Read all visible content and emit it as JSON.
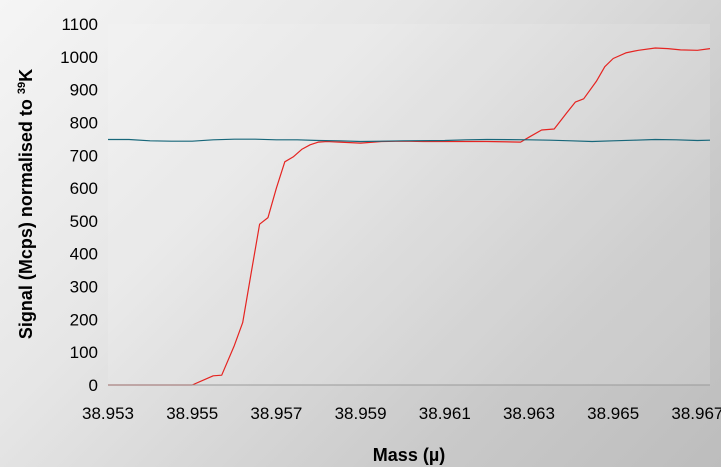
{
  "chart_data": {
    "type": "line",
    "xlabel": "Mass (µ)",
    "ylabel": {
      "prefix": "Signal (Mcps) normalised to ",
      "superscript": "39",
      "suffix": "K"
    },
    "ylim": [
      0,
      1100
    ],
    "xlim": [
      38.953,
      38.9673
    ],
    "yticks": [
      0,
      100,
      200,
      300,
      400,
      500,
      600,
      700,
      800,
      900,
      1000,
      1100
    ],
    "xticks": [
      "38.953",
      "38.955",
      "38.957",
      "38.959",
      "38.961",
      "38.963",
      "38.965",
      "38.967"
    ],
    "grid": false,
    "legend": "none",
    "series": [
      {
        "color": "#e52421",
        "points": [
          [
            38.953,
            0
          ],
          [
            38.9535,
            0
          ],
          [
            38.954,
            0
          ],
          [
            38.9545,
            0
          ],
          [
            38.955,
            0
          ],
          [
            38.9555,
            28
          ],
          [
            38.9557,
            30
          ],
          [
            38.956,
            120
          ],
          [
            38.9562,
            190
          ],
          [
            38.9564,
            340
          ],
          [
            38.9566,
            490
          ],
          [
            38.9568,
            510
          ],
          [
            38.957,
            600
          ],
          [
            38.9572,
            680
          ],
          [
            38.9574,
            695
          ],
          [
            38.9576,
            718
          ],
          [
            38.9578,
            732
          ],
          [
            38.958,
            740
          ],
          [
            38.9582,
            742
          ],
          [
            38.9585,
            740
          ],
          [
            38.959,
            737
          ],
          [
            38.9595,
            742
          ],
          [
            38.96,
            743
          ],
          [
            38.9605,
            742
          ],
          [
            38.961,
            742
          ],
          [
            38.962,
            742
          ],
          [
            38.9628,
            740
          ],
          [
            38.963,
            755
          ],
          [
            38.9633,
            777
          ],
          [
            38.9636,
            780
          ],
          [
            38.9639,
            830
          ],
          [
            38.9641,
            862
          ],
          [
            38.9643,
            872
          ],
          [
            38.9646,
            925
          ],
          [
            38.9648,
            970
          ],
          [
            38.965,
            995
          ],
          [
            38.9653,
            1012
          ],
          [
            38.9656,
            1020
          ],
          [
            38.966,
            1027
          ],
          [
            38.9663,
            1025
          ],
          [
            38.9666,
            1021
          ],
          [
            38.967,
            1020
          ],
          [
            38.9673,
            1025
          ]
        ]
      },
      {
        "color": "#17677a",
        "points": [
          [
            38.953,
            748
          ],
          [
            38.9535,
            748
          ],
          [
            38.954,
            744
          ],
          [
            38.9545,
            743
          ],
          [
            38.955,
            743
          ],
          [
            38.9555,
            747
          ],
          [
            38.956,
            749
          ],
          [
            38.9565,
            749
          ],
          [
            38.957,
            747
          ],
          [
            38.9575,
            747
          ],
          [
            38.958,
            745
          ],
          [
            38.9585,
            744
          ],
          [
            38.959,
            742
          ],
          [
            38.9595,
            743
          ],
          [
            38.96,
            744
          ],
          [
            38.961,
            745
          ],
          [
            38.9615,
            747
          ],
          [
            38.962,
            748
          ],
          [
            38.963,
            747
          ],
          [
            38.9635,
            746
          ],
          [
            38.964,
            744
          ],
          [
            38.9645,
            742
          ],
          [
            38.965,
            744
          ],
          [
            38.9655,
            746
          ],
          [
            38.966,
            748
          ],
          [
            38.9665,
            747
          ],
          [
            38.967,
            745
          ],
          [
            38.9673,
            746
          ]
        ]
      }
    ]
  }
}
